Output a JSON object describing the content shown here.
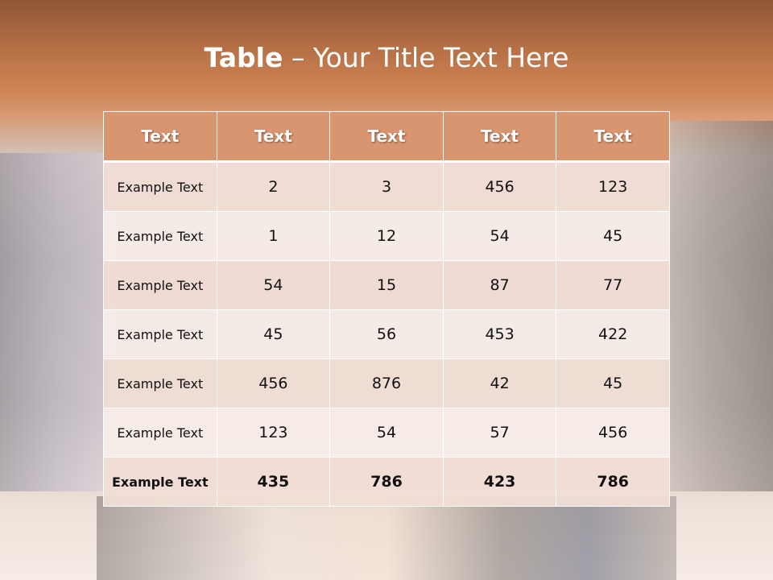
{
  "slide": {
    "title_bold": "Table",
    "title_rest": " – Your Title Text Here"
  },
  "colors": {
    "header": "#d9956f",
    "row_odd": "#f1ddd5",
    "row_even": "#f8ede9",
    "band": "#cf8556"
  },
  "table": {
    "headers": [
      "Text",
      "Text",
      "Text",
      "Text",
      "Text"
    ],
    "rows": [
      [
        "Example Text",
        "2",
        "3",
        "456",
        "123"
      ],
      [
        "Example Text",
        "1",
        "12",
        "54",
        "45"
      ],
      [
        "Example Text",
        "54",
        "15",
        "87",
        "77"
      ],
      [
        "Example Text",
        "45",
        "56",
        "453",
        "422"
      ],
      [
        "Example Text",
        "456",
        "876",
        "42",
        "45"
      ],
      [
        "Example Text",
        "123",
        "54",
        "57",
        "456"
      ],
      [
        "Example Text",
        "435",
        "786",
        "423",
        "786"
      ]
    ]
  }
}
